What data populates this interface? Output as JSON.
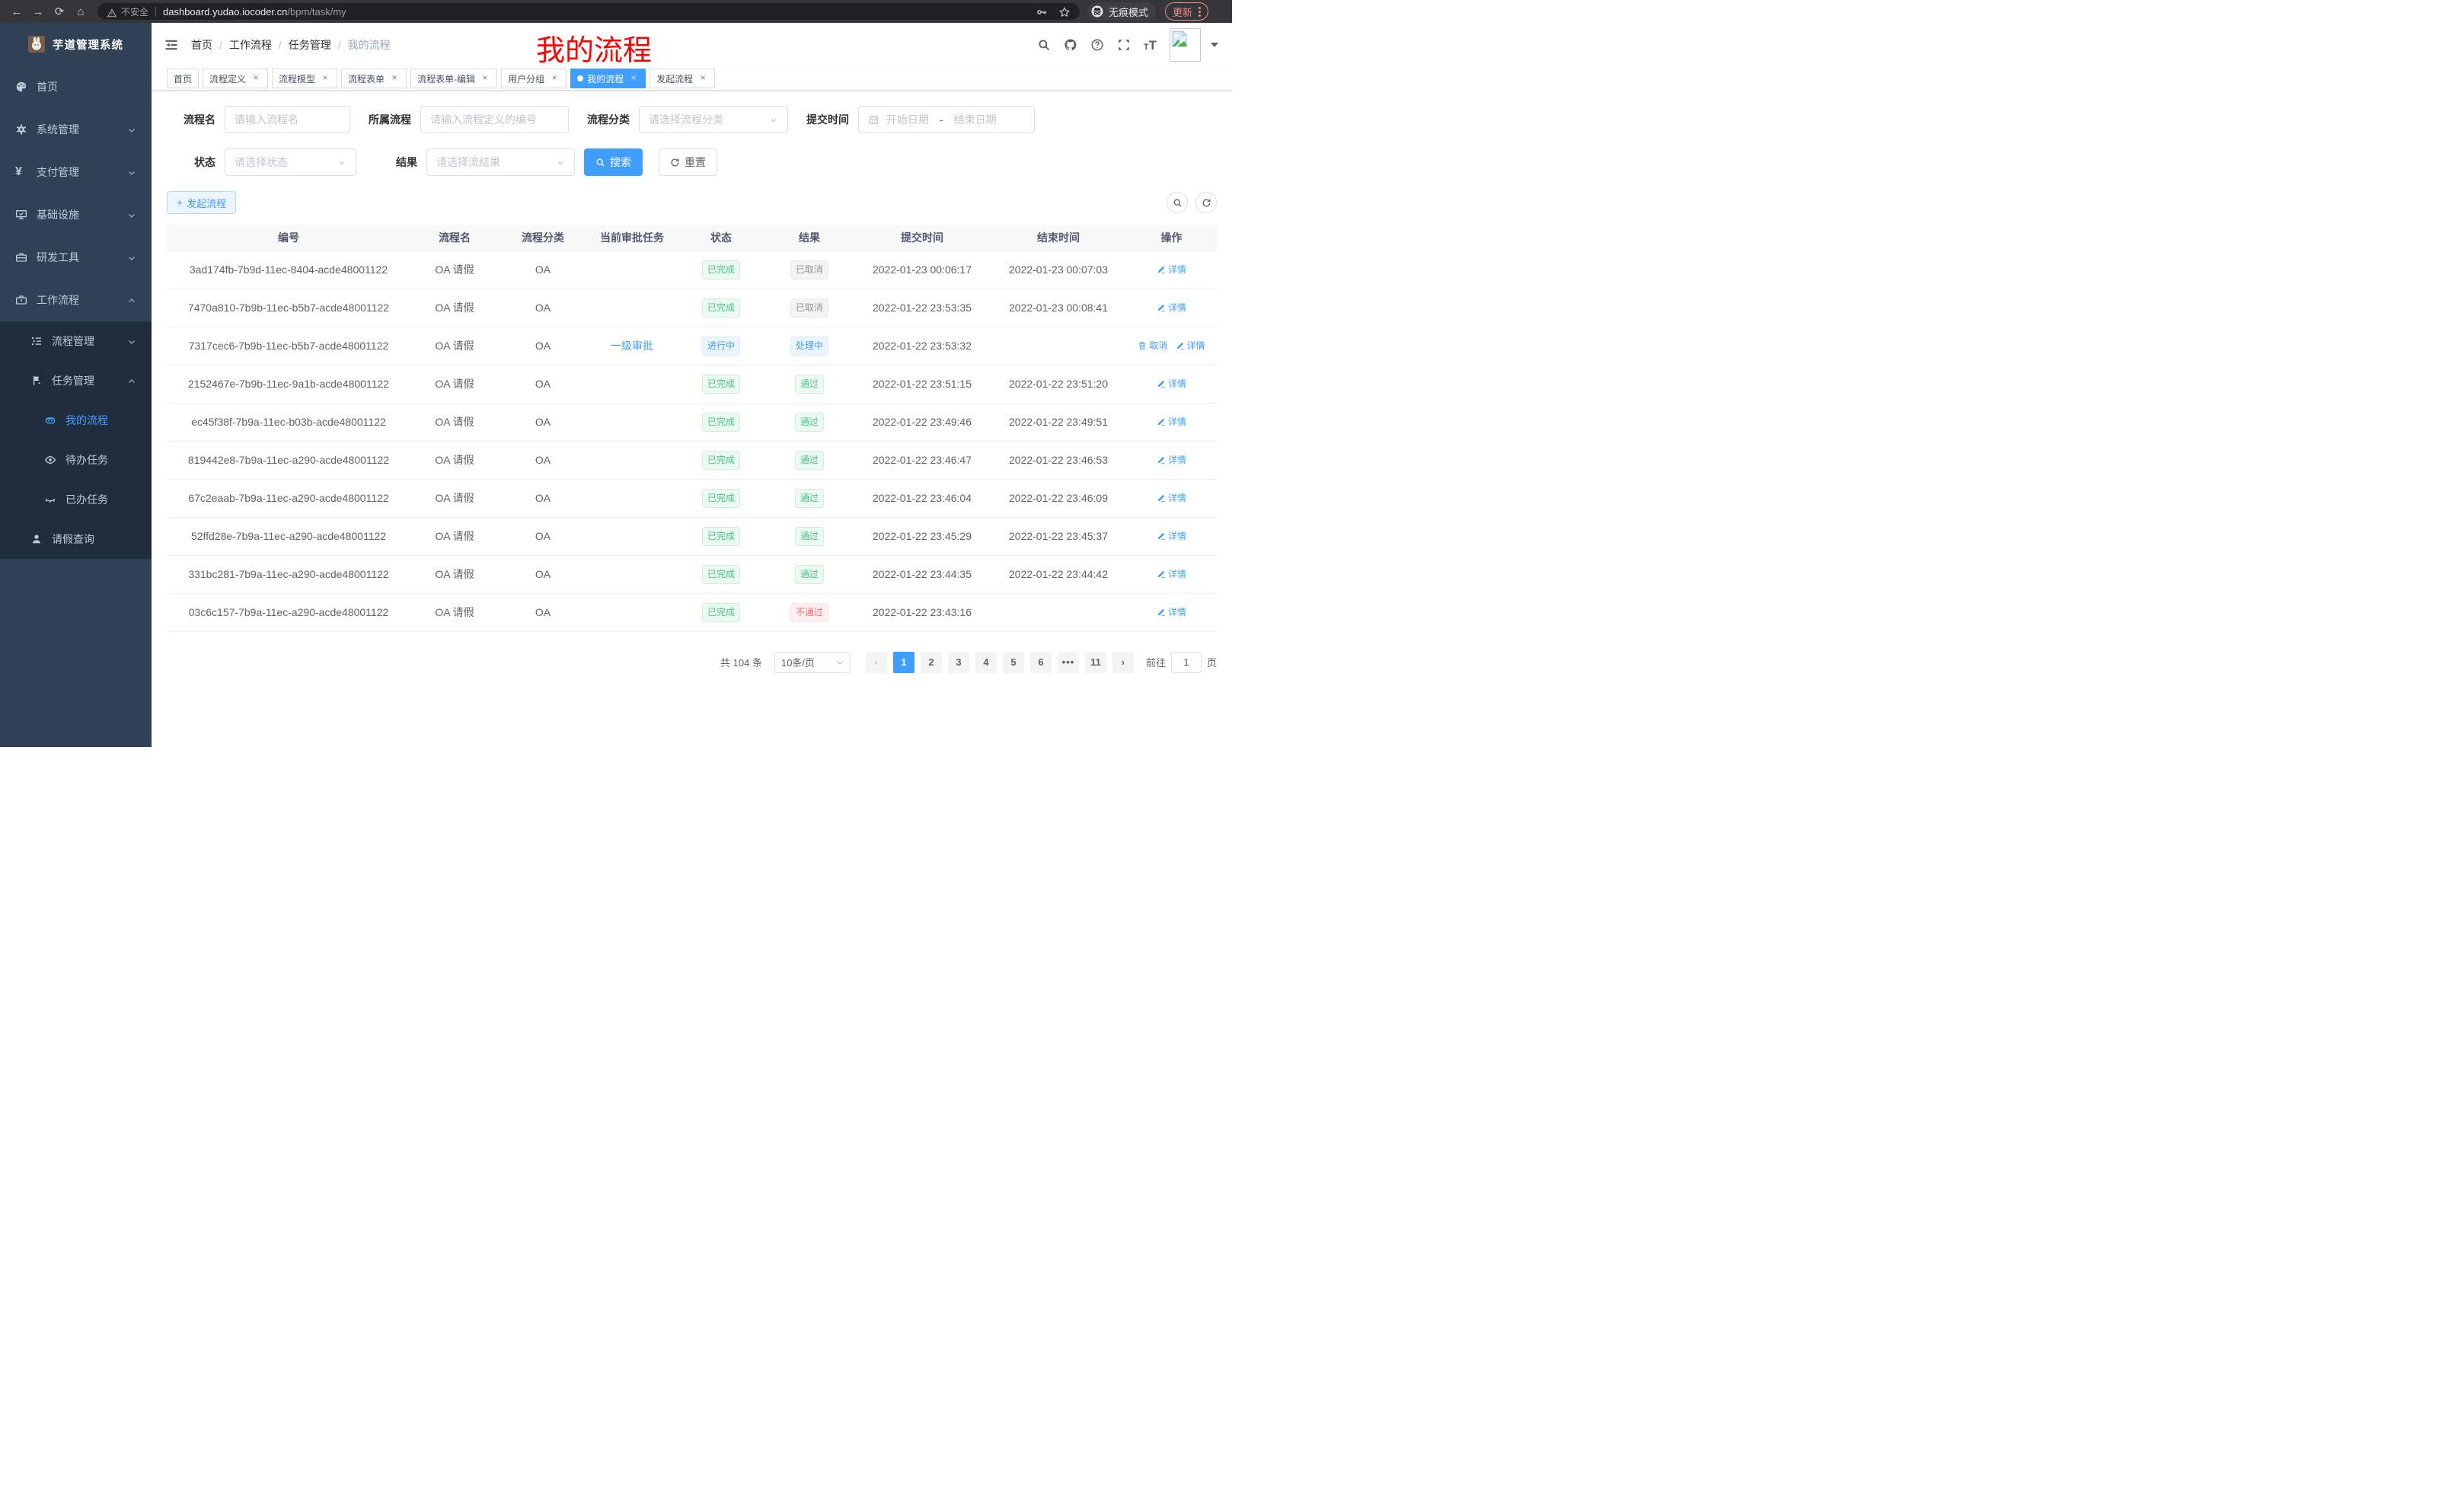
{
  "browser": {
    "security_label": "不安全",
    "url_host": "dashboard.yudao.iocoder.cn",
    "url_path": "/bpm/task/my",
    "incognito_label": "无痕模式",
    "update_label": "更新"
  },
  "sidebar": {
    "title": "芋道管理系统",
    "items": [
      {
        "key": "home",
        "label": "首页",
        "icon": "dashboard-icon",
        "level": 0
      },
      {
        "key": "system",
        "label": "系统管理",
        "icon": "gear-icon",
        "level": 0,
        "chevron": "down"
      },
      {
        "key": "payment",
        "label": "支付管理",
        "icon": "yen-icon",
        "level": 0,
        "chevron": "down"
      },
      {
        "key": "infrastructure",
        "label": "基础设施",
        "icon": "monitor-icon",
        "level": 0,
        "chevron": "down"
      },
      {
        "key": "dev-tools",
        "label": "研发工具",
        "icon": "toolbox-icon",
        "level": 0,
        "chevron": "down"
      },
      {
        "key": "workflow",
        "label": "工作流程",
        "icon": "briefcase-icon",
        "level": 0,
        "chevron": "up"
      },
      {
        "key": "process-mgmt",
        "label": "流程管理",
        "icon": "tree-list-icon",
        "level": 1,
        "chevron": "down",
        "dark": true
      },
      {
        "key": "task-mgmt",
        "label": "任务管理",
        "icon": "tasks-icon",
        "level": 1,
        "chevron": "up",
        "dark": true
      },
      {
        "key": "my-process",
        "label": "我的流程",
        "icon": "robot-icon",
        "level": 2,
        "active": true,
        "dark": true
      },
      {
        "key": "todo-tasks",
        "label": "待办任务",
        "icon": "eye-icon",
        "level": 2,
        "dark": true
      },
      {
        "key": "done-tasks",
        "label": "已办任务",
        "icon": "eye-closed-icon",
        "level": 2,
        "dark": true
      },
      {
        "key": "leave-query",
        "label": "请假查询",
        "icon": "user-icon",
        "level": 1,
        "dark": true
      }
    ]
  },
  "header": {
    "breadcrumb": [
      "首页",
      "工作流程",
      "任务管理",
      "我的流程"
    ],
    "overlay_title": "我的流程"
  },
  "tabs": [
    {
      "key": "home",
      "label": "首页"
    },
    {
      "key": "process-definition",
      "label": "流程定义",
      "closable": true
    },
    {
      "key": "process-model",
      "label": "流程模型",
      "closable": true
    },
    {
      "key": "process-form",
      "label": "流程表单",
      "closable": true
    },
    {
      "key": "process-form-edit",
      "label": "流程表单-编辑",
      "closable": true
    },
    {
      "key": "user-group",
      "label": "用户分组",
      "closable": true
    },
    {
      "key": "my-process",
      "label": "我的流程",
      "closable": true,
      "active": true
    },
    {
      "key": "start-process",
      "label": "发起流程",
      "closable": true
    }
  ],
  "filters": {
    "name_label": "流程名",
    "name_placeholder": "请输入流程名",
    "definition_label": "所属流程",
    "definition_placeholder": "请输入流程定义的编号",
    "category_label": "流程分类",
    "category_placeholder": "请选择流程分类",
    "time_label": "提交时间",
    "date_start_placeholder": "开始日期",
    "date_separator": "-",
    "date_end_placeholder": "结束日期",
    "status_label": "状态",
    "status_placeholder": "请选择状态",
    "result_label": "结果",
    "result_placeholder": "请选择流结果",
    "search_label": "搜索",
    "reset_label": "重置"
  },
  "toolbar": {
    "create_label": "发起流程"
  },
  "table": {
    "headers": [
      "编号",
      "流程名",
      "流程分类",
      "当前审批任务",
      "状态",
      "结果",
      "提交时间",
      "结束时间",
      "操作"
    ],
    "rows": [
      {
        "id": "3ad174fb-7b9d-11ec-8404-acde48001122",
        "name": "OA 请假",
        "category": "OA",
        "task": "",
        "status": {
          "text": "已完成",
          "type": "success"
        },
        "result": {
          "text": "已取消",
          "type": "info"
        },
        "submit": "2022-01-23 00:06:17",
        "end": "2022-01-23 00:07:03",
        "actions": [
          {
            "key": "detail",
            "label": "详情",
            "icon": "edit-icon"
          }
        ]
      },
      {
        "id": "7470a810-7b9b-11ec-b5b7-acde48001122",
        "name": "OA 请假",
        "category": "OA",
        "task": "",
        "status": {
          "text": "已完成",
          "type": "success"
        },
        "result": {
          "text": "已取消",
          "type": "info"
        },
        "submit": "2022-01-22 23:53:35",
        "end": "2022-01-23 00:08:41",
        "actions": [
          {
            "key": "detail",
            "label": "详情",
            "icon": "edit-icon"
          }
        ]
      },
      {
        "id": "7317cec6-7b9b-11ec-b5b7-acde48001122",
        "name": "OA 请假",
        "category": "OA",
        "task": "一级审批",
        "status": {
          "text": "进行中",
          "type": "primary"
        },
        "result": {
          "text": "处理中",
          "type": "primary"
        },
        "submit": "2022-01-22 23:53:32",
        "end": "",
        "actions": [
          {
            "key": "cancel",
            "label": "取消",
            "icon": "trash-icon"
          },
          {
            "key": "detail",
            "label": "详情",
            "icon": "edit-icon"
          }
        ]
      },
      {
        "id": "2152467e-7b9b-11ec-9a1b-acde48001122",
        "name": "OA 请假",
        "category": "OA",
        "task": "",
        "status": {
          "text": "已完成",
          "type": "success"
        },
        "result": {
          "text": "通过",
          "type": "success"
        },
        "submit": "2022-01-22 23:51:15",
        "end": "2022-01-22 23:51:20",
        "actions": [
          {
            "key": "detail",
            "label": "详情",
            "icon": "edit-icon"
          }
        ]
      },
      {
        "id": "ec45f38f-7b9a-11ec-b03b-acde48001122",
        "name": "OA 请假",
        "category": "OA",
        "task": "",
        "status": {
          "text": "已完成",
          "type": "success"
        },
        "result": {
          "text": "通过",
          "type": "success"
        },
        "submit": "2022-01-22 23:49:46",
        "end": "2022-01-22 23:49:51",
        "actions": [
          {
            "key": "detail",
            "label": "详情",
            "icon": "edit-icon"
          }
        ]
      },
      {
        "id": "819442e8-7b9a-11ec-a290-acde48001122",
        "name": "OA 请假",
        "category": "OA",
        "task": "",
        "status": {
          "text": "已完成",
          "type": "success"
        },
        "result": {
          "text": "通过",
          "type": "success"
        },
        "submit": "2022-01-22 23:46:47",
        "end": "2022-01-22 23:46:53",
        "actions": [
          {
            "key": "detail",
            "label": "详情",
            "icon": "edit-icon"
          }
        ]
      },
      {
        "id": "67c2eaab-7b9a-11ec-a290-acde48001122",
        "name": "OA 请假",
        "category": "OA",
        "task": "",
        "status": {
          "text": "已完成",
          "type": "success"
        },
        "result": {
          "text": "通过",
          "type": "success"
        },
        "submit": "2022-01-22 23:46:04",
        "end": "2022-01-22 23:46:09",
        "actions": [
          {
            "key": "detail",
            "label": "详情",
            "icon": "edit-icon"
          }
        ]
      },
      {
        "id": "52ffd28e-7b9a-11ec-a290-acde48001122",
        "name": "OA 请假",
        "category": "OA",
        "task": "",
        "status": {
          "text": "已完成",
          "type": "success"
        },
        "result": {
          "text": "通过",
          "type": "success"
        },
        "submit": "2022-01-22 23:45:29",
        "end": "2022-01-22 23:45:37",
        "actions": [
          {
            "key": "detail",
            "label": "详情",
            "icon": "edit-icon"
          }
        ]
      },
      {
        "id": "331bc281-7b9a-11ec-a290-acde48001122",
        "name": "OA 请假",
        "category": "OA",
        "task": "",
        "status": {
          "text": "已完成",
          "type": "success"
        },
        "result": {
          "text": "通过",
          "type": "success"
        },
        "submit": "2022-01-22 23:44:35",
        "end": "2022-01-22 23:44:42",
        "actions": [
          {
            "key": "detail",
            "label": "详情",
            "icon": "edit-icon"
          }
        ]
      },
      {
        "id": "03c6c157-7b9a-11ec-a290-acde48001122",
        "name": "OA 请假",
        "category": "OA",
        "task": "",
        "status": {
          "text": "已完成",
          "type": "success"
        },
        "result": {
          "text": "不通过",
          "type": "danger"
        },
        "submit": "2022-01-22 23:43:16",
        "end": "",
        "actions": [
          {
            "key": "detail",
            "label": "详情",
            "icon": "edit-icon"
          }
        ]
      }
    ]
  },
  "pagination": {
    "total": "共 104 条",
    "page_size": "10条/页",
    "pages": [
      "1",
      "2",
      "3",
      "4",
      "5",
      "6",
      "•••",
      "11"
    ],
    "active_page": "1",
    "goto_label": "前往",
    "goto_value": "1",
    "goto_suffix": "页"
  },
  "colors": {
    "primary": "#409eff",
    "success": "#42c882",
    "info": "#909399",
    "danger": "#f56c6c",
    "sidebar_bg": "#304156",
    "submenu_bg": "#1f2d3d"
  }
}
